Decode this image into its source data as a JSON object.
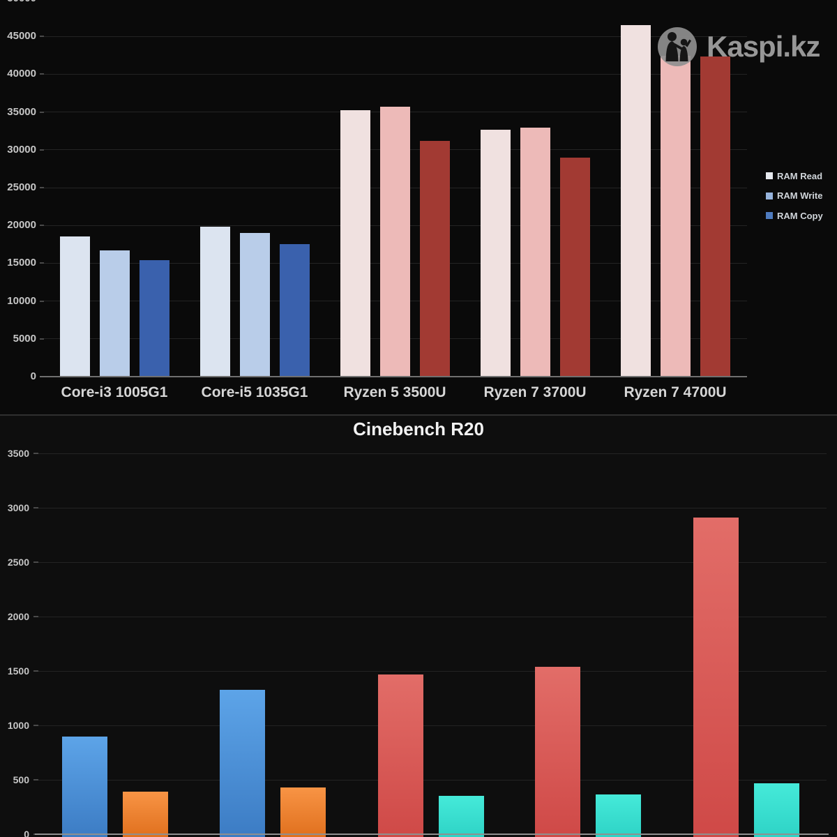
{
  "watermark": {
    "text": "Kaspi.kz",
    "icon": "kaspi-people-logo"
  },
  "chart_data": [
    {
      "type": "bar",
      "title": "",
      "categories": [
        "Core-i3 1005G1",
        "Core-i5 1035G1",
        "Ryzen 5 3500U",
        "Ryzen 7 3700U",
        "Ryzen 7 4700U"
      ],
      "series": [
        {
          "name": "RAM Read",
          "values": [
            18500,
            19800,
            35200,
            32700,
            46500
          ]
        },
        {
          "name": "RAM Write",
          "values": [
            16700,
            19000,
            35700,
            32900,
            42400
          ]
        },
        {
          "name": "RAM Copy",
          "values": [
            15400,
            17500,
            31200,
            29000,
            42300
          ]
        }
      ],
      "vendors": [
        "intel",
        "intel",
        "amd",
        "amd",
        "amd"
      ],
      "palette": {
        "intel": [
          "#dce4f0",
          "#b9cde9",
          "#3a61ad"
        ],
        "amd": [
          "#f0e1e0",
          "#edbab8",
          "#a23a33"
        ]
      },
      "legend": [
        {
          "label": "RAM Read",
          "color": "#e6e9ee"
        },
        {
          "label": "RAM Write",
          "color": "#96b3dc"
        },
        {
          "label": "RAM Copy",
          "color": "#4e7bbf"
        }
      ],
      "legend_position": "right",
      "xlabel": "",
      "ylabel": "",
      "ylim": [
        0,
        50000
      ],
      "ytick_step": 5000,
      "grid": true
    },
    {
      "type": "bar",
      "title": "Cinebench R20",
      "categories": [],
      "series": [
        {
          "values": [
            900,
            1330,
            1470,
            1540,
            2910
          ],
          "colors": [
            "blue",
            "blue",
            "red",
            "red",
            "red"
          ]
        },
        {
          "values": [
            390,
            430,
            350,
            365,
            470
          ],
          "colors": [
            "orange",
            "orange",
            "teal",
            "teal",
            "teal"
          ]
        }
      ],
      "palette": {
        "blue": {
          "top": "#5da4e8",
          "bottom": "#3c7cc4"
        },
        "orange": {
          "top": "#f89445",
          "bottom": "#e0701e"
        },
        "red": {
          "top": "#e26d68",
          "bottom": "#cf4947"
        },
        "teal": {
          "top": "#45ead9",
          "bottom": "#2ed3c6"
        }
      },
      "xlabel": "",
      "ylabel": "",
      "ylim": [
        0,
        3500
      ],
      "ytick_step": 500,
      "grid": true
    }
  ]
}
